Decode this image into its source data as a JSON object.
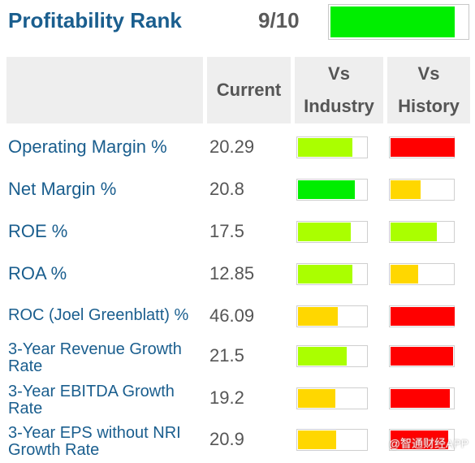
{
  "rank": {
    "title": "Profitability Rank",
    "value": "9/10",
    "fraction": 0.9,
    "color": "#00ee00"
  },
  "headers": {
    "current": "Current",
    "vs_industry_1": "Vs",
    "vs_industry_2": "Industry",
    "vs_history_1": "Vs",
    "vs_history_2": "History"
  },
  "colors": {
    "green": "#00ee00",
    "lime": "#aaff00",
    "yellow": "#ffd700",
    "red": "#ff0000"
  },
  "rows": [
    {
      "label": "Operating Margin %",
      "current": "20.29",
      "industry": {
        "fraction": 0.78,
        "color": "lime"
      },
      "history": {
        "fraction": 1.0,
        "color": "red"
      }
    },
    {
      "label": "Net Margin %",
      "current": "20.8",
      "industry": {
        "fraction": 0.81,
        "color": "green"
      },
      "history": {
        "fraction": 0.47,
        "color": "yellow"
      }
    },
    {
      "label": "ROE %",
      "current": "17.5",
      "industry": {
        "fraction": 0.76,
        "color": "lime"
      },
      "history": {
        "fraction": 0.72,
        "color": "lime"
      }
    },
    {
      "label": "ROA %",
      "current": "12.85",
      "industry": {
        "fraction": 0.78,
        "color": "lime"
      },
      "history": {
        "fraction": 0.43,
        "color": "yellow"
      }
    },
    {
      "label": "ROC (Joel Greenblatt) %",
      "current": "46.09",
      "industry": {
        "fraction": 0.57,
        "color": "yellow"
      },
      "history": {
        "fraction": 1.0,
        "color": "red"
      }
    },
    {
      "label": "3-Year Revenue Growth Rate",
      "current": "21.5",
      "industry": {
        "fraction": 0.7,
        "color": "lime"
      },
      "history": {
        "fraction": 0.97,
        "color": "red"
      }
    },
    {
      "label": "3-Year EBITDA Growth Rate",
      "current": "19.2",
      "industry": {
        "fraction": 0.53,
        "color": "yellow"
      },
      "history": {
        "fraction": 0.92,
        "color": "red"
      }
    },
    {
      "label": "3-Year EPS without NRI Growth Rate",
      "current": "20.9",
      "industry": {
        "fraction": 0.55,
        "color": "yellow"
      },
      "history": {
        "fraction": 0.9,
        "color": "red"
      }
    }
  ],
  "watermark": "@智通财经APP"
}
